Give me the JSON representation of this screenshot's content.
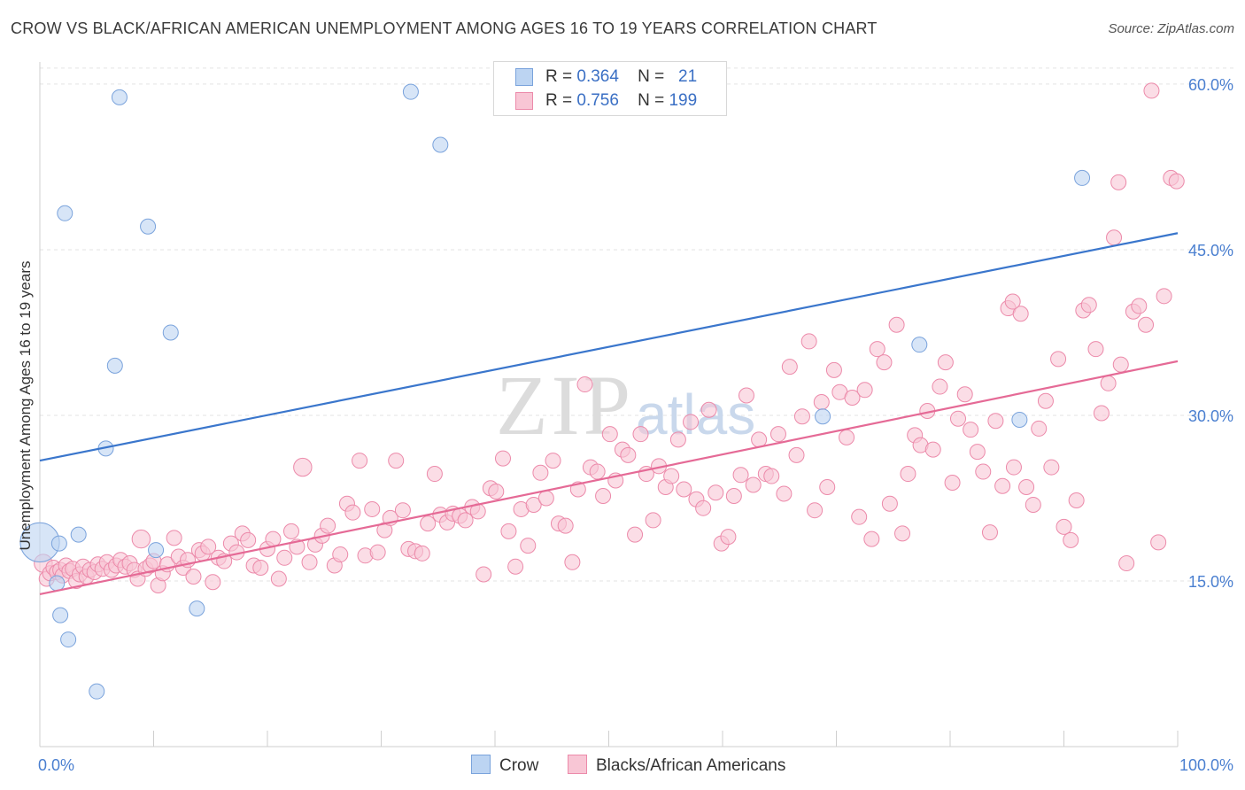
{
  "title": "CROW VS BLACK/AFRICAN AMERICAN UNEMPLOYMENT AMONG AGES 16 TO 19 YEARS CORRELATION CHART",
  "source": "Source: ZipAtlas.com",
  "watermark": {
    "zip": "ZIP",
    "atlas": "atlas"
  },
  "legend": [
    {
      "r_label": "R =",
      "r_value": "0.364",
      "n_label": "N =",
      "n_value": "21"
    },
    {
      "r_label": "R =",
      "r_value": "0.756",
      "n_label": "N =",
      "n_value": "199"
    }
  ],
  "colors": {
    "crow_fill": "#bcd4f2",
    "crow_stroke": "#7aa3dc",
    "crow_line": "#3a76cc",
    "black_fill": "#f8c6d5",
    "black_stroke": "#ec8aaa",
    "black_line": "#e56a96",
    "grid": "#e3e3e3",
    "axis_text": "#4a7fd0"
  },
  "chart_data": {
    "type": "scatter",
    "title": "CROW VS BLACK/AFRICAN AMERICAN UNEMPLOYMENT AMONG AGES 16 TO 19 YEARS CORRELATION CHART",
    "xlabel": "",
    "ylabel": "Unemployment Among Ages 16 to 19 years",
    "xlim": [
      0,
      100
    ],
    "ylim": [
      0,
      62
    ],
    "x_tick_labels": [
      {
        "value": 0,
        "label": "0.0%"
      },
      {
        "value": 100,
        "label": "100.0%"
      }
    ],
    "y_tick_labels": [
      {
        "value": 15,
        "label": "15.0%"
      },
      {
        "value": 30,
        "label": "30.0%"
      },
      {
        "value": 45,
        "label": "45.0%"
      },
      {
        "value": 60,
        "label": "60.0%"
      }
    ],
    "x_minor_ticks": [
      0,
      10,
      20,
      30,
      40,
      50,
      60,
      70,
      80,
      90,
      100
    ],
    "grid": true,
    "series": [
      {
        "name": "Crow",
        "trend": {
          "x0": 0,
          "y0": 25.9,
          "x1": 100,
          "y1": 46.5
        },
        "points": [
          [
            0.0,
            18.5,
            26
          ],
          [
            1.5,
            14.8,
            10
          ],
          [
            1.8,
            11.9,
            10
          ],
          [
            1.7,
            18.4,
            10
          ],
          [
            2.2,
            48.3,
            10
          ],
          [
            2.5,
            9.7,
            10
          ],
          [
            3.4,
            19.2,
            10
          ],
          [
            5.0,
            5.0,
            10
          ],
          [
            5.8,
            27.0,
            10
          ],
          [
            6.6,
            34.5,
            10
          ],
          [
            7.0,
            58.8,
            10
          ],
          [
            9.5,
            47.1,
            10
          ],
          [
            10.2,
            17.8,
            10
          ],
          [
            11.5,
            37.5,
            10
          ],
          [
            13.8,
            12.5,
            10
          ],
          [
            32.6,
            59.3,
            10
          ],
          [
            35.2,
            54.5,
            10
          ],
          [
            68.8,
            29.9,
            10
          ],
          [
            77.3,
            36.4,
            10
          ],
          [
            86.1,
            29.6,
            10
          ],
          [
            91.6,
            51.5,
            10
          ]
        ]
      },
      {
        "name": "Blacks/African Americans",
        "trend": {
          "x0": 0,
          "y0": 13.8,
          "x1": 100,
          "y1": 34.9
        },
        "points": [
          [
            0.3,
            16.6,
            12
          ],
          [
            0.6,
            15.2,
            10
          ],
          [
            0.9,
            15.7,
            10
          ],
          [
            1.2,
            16.2,
            10
          ],
          [
            1.5,
            15.8,
            10
          ],
          [
            1.8,
            16.0,
            10
          ],
          [
            2.0,
            15.5,
            10
          ],
          [
            2.3,
            16.4,
            10
          ],
          [
            2.6,
            15.9,
            10
          ],
          [
            2.9,
            16.1,
            10
          ],
          [
            3.2,
            15.0,
            10
          ],
          [
            3.5,
            15.6,
            10
          ],
          [
            3.8,
            16.3,
            10
          ],
          [
            4.1,
            15.4,
            10
          ],
          [
            4.4,
            16.0,
            10
          ],
          [
            4.8,
            15.8,
            10
          ],
          [
            5.1,
            16.5,
            10
          ],
          [
            5.5,
            16.1,
            10
          ],
          [
            5.9,
            16.7,
            10
          ],
          [
            6.3,
            16.0,
            10
          ],
          [
            6.7,
            16.4,
            10
          ],
          [
            7.1,
            16.9,
            10
          ],
          [
            7.5,
            16.3,
            10
          ],
          [
            7.9,
            16.6,
            10
          ],
          [
            8.3,
            16.0,
            10
          ],
          [
            8.6,
            15.2,
            10
          ],
          [
            8.9,
            18.8,
            12
          ],
          [
            9.3,
            16.1,
            10
          ],
          [
            9.7,
            16.4,
            10
          ],
          [
            10.0,
            16.8,
            10
          ],
          [
            10.4,
            14.6,
            10
          ],
          [
            10.8,
            15.7,
            10
          ],
          [
            11.2,
            16.5,
            10
          ],
          [
            11.8,
            18.9,
            10
          ],
          [
            12.2,
            17.2,
            10
          ],
          [
            12.6,
            16.2,
            10
          ],
          [
            13.0,
            16.9,
            10
          ],
          [
            13.5,
            15.4,
            10
          ],
          [
            14.0,
            17.8,
            10
          ],
          [
            14.3,
            17.5,
            10
          ],
          [
            14.8,
            18.1,
            10
          ],
          [
            15.2,
            14.9,
            10
          ],
          [
            15.7,
            17.1,
            10
          ],
          [
            16.2,
            16.8,
            10
          ],
          [
            16.8,
            18.4,
            10
          ],
          [
            17.3,
            17.6,
            10
          ],
          [
            17.8,
            19.3,
            10
          ],
          [
            18.3,
            18.7,
            10
          ],
          [
            18.8,
            16.4,
            10
          ],
          [
            19.4,
            16.2,
            10
          ],
          [
            20.0,
            17.9,
            10
          ],
          [
            20.5,
            18.8,
            10
          ],
          [
            21.0,
            15.2,
            10
          ],
          [
            21.5,
            17.1,
            10
          ],
          [
            22.1,
            19.5,
            10
          ],
          [
            22.6,
            18.1,
            10
          ],
          [
            23.1,
            25.3,
            12
          ],
          [
            23.7,
            16.7,
            10
          ],
          [
            24.2,
            18.3,
            10
          ],
          [
            24.8,
            19.1,
            10
          ],
          [
            25.3,
            20.0,
            10
          ],
          [
            25.9,
            16.4,
            10
          ],
          [
            26.4,
            17.4,
            10
          ],
          [
            27.0,
            22.0,
            10
          ],
          [
            27.5,
            21.2,
            10
          ],
          [
            28.1,
            25.9,
            10
          ],
          [
            28.6,
            17.3,
            10
          ],
          [
            29.2,
            21.5,
            10
          ],
          [
            29.7,
            17.6,
            10
          ],
          [
            30.3,
            19.6,
            10
          ],
          [
            30.8,
            20.7,
            10
          ],
          [
            31.3,
            25.9,
            10
          ],
          [
            31.9,
            21.4,
            10
          ],
          [
            32.4,
            17.9,
            10
          ],
          [
            33.0,
            17.7,
            10
          ],
          [
            33.6,
            17.5,
            10
          ],
          [
            34.1,
            20.2,
            10
          ],
          [
            34.7,
            24.7,
            10
          ],
          [
            35.2,
            21.0,
            10
          ],
          [
            35.8,
            20.3,
            10
          ],
          [
            36.3,
            21.1,
            10
          ],
          [
            36.9,
            20.9,
            10
          ],
          [
            37.4,
            20.5,
            10
          ],
          [
            38.0,
            21.7,
            10
          ],
          [
            38.5,
            21.3,
            10
          ],
          [
            39.0,
            15.6,
            10
          ],
          [
            39.6,
            23.4,
            10
          ],
          [
            40.1,
            23.1,
            10
          ],
          [
            40.7,
            26.1,
            10
          ],
          [
            41.2,
            19.5,
            10
          ],
          [
            41.8,
            16.3,
            10
          ],
          [
            42.3,
            21.5,
            10
          ],
          [
            42.9,
            18.2,
            10
          ],
          [
            43.4,
            21.9,
            10
          ],
          [
            44.0,
            24.8,
            10
          ],
          [
            44.5,
            22.5,
            10
          ],
          [
            45.1,
            25.9,
            10
          ],
          [
            45.6,
            20.2,
            10
          ],
          [
            46.2,
            20.0,
            10
          ],
          [
            46.8,
            16.7,
            10
          ],
          [
            47.3,
            23.3,
            10
          ],
          [
            47.9,
            32.8,
            10
          ],
          [
            48.4,
            25.3,
            10
          ],
          [
            49.0,
            24.9,
            10
          ],
          [
            49.5,
            22.7,
            10
          ],
          [
            50.1,
            28.3,
            10
          ],
          [
            50.6,
            24.1,
            10
          ],
          [
            51.2,
            26.9,
            10
          ],
          [
            51.7,
            26.4,
            10
          ],
          [
            52.3,
            19.2,
            10
          ],
          [
            52.8,
            28.3,
            10
          ],
          [
            53.3,
            24.7,
            10
          ],
          [
            53.9,
            20.5,
            10
          ],
          [
            54.4,
            25.4,
            10
          ],
          [
            55.0,
            23.5,
            10
          ],
          [
            55.5,
            24.5,
            10
          ],
          [
            56.1,
            27.8,
            10
          ],
          [
            56.6,
            23.3,
            10
          ],
          [
            57.2,
            29.4,
            10
          ],
          [
            57.7,
            22.4,
            10
          ],
          [
            58.3,
            21.6,
            10
          ],
          [
            58.8,
            30.5,
            10
          ],
          [
            59.4,
            23.0,
            10
          ],
          [
            59.9,
            18.4,
            10
          ],
          [
            60.5,
            19.0,
            10
          ],
          [
            61.0,
            22.7,
            10
          ],
          [
            61.6,
            24.6,
            10
          ],
          [
            62.1,
            31.8,
            10
          ],
          [
            62.7,
            23.7,
            10
          ],
          [
            63.2,
            27.8,
            10
          ],
          [
            63.8,
            24.7,
            10
          ],
          [
            64.3,
            24.5,
            10
          ],
          [
            64.9,
            28.3,
            10
          ],
          [
            65.4,
            22.9,
            10
          ],
          [
            65.9,
            34.4,
            10
          ],
          [
            66.5,
            26.4,
            10
          ],
          [
            67.0,
            29.9,
            10
          ],
          [
            67.6,
            36.7,
            10
          ],
          [
            68.1,
            21.4,
            10
          ],
          [
            68.7,
            31.2,
            10
          ],
          [
            69.2,
            23.5,
            10
          ],
          [
            69.8,
            34.1,
            10
          ],
          [
            70.3,
            32.1,
            10
          ],
          [
            70.9,
            28.0,
            10
          ],
          [
            71.4,
            31.6,
            10
          ],
          [
            72.0,
            20.8,
            10
          ],
          [
            72.5,
            32.3,
            10
          ],
          [
            73.1,
            18.8,
            10
          ],
          [
            73.6,
            36.0,
            10
          ],
          [
            74.2,
            34.8,
            10
          ],
          [
            74.7,
            22.0,
            10
          ],
          [
            75.3,
            38.2,
            10
          ],
          [
            75.8,
            19.3,
            10
          ],
          [
            76.3,
            24.7,
            10
          ],
          [
            76.9,
            28.2,
            10
          ],
          [
            77.4,
            27.3,
            10
          ],
          [
            78.0,
            30.4,
            10
          ],
          [
            78.5,
            26.9,
            10
          ],
          [
            79.1,
            32.6,
            10
          ],
          [
            79.6,
            34.8,
            10
          ],
          [
            80.2,
            23.9,
            10
          ],
          [
            80.7,
            29.7,
            10
          ],
          [
            81.3,
            31.9,
            10
          ],
          [
            81.8,
            28.7,
            10
          ],
          [
            82.4,
            26.7,
            10
          ],
          [
            82.9,
            24.9,
            10
          ],
          [
            83.5,
            19.4,
            10
          ],
          [
            84.0,
            29.5,
            10
          ],
          [
            84.6,
            23.6,
            10
          ],
          [
            85.1,
            39.7,
            10
          ],
          [
            85.6,
            25.3,
            10
          ],
          [
            86.2,
            39.2,
            10
          ],
          [
            86.7,
            23.5,
            10
          ],
          [
            87.3,
            21.9,
            10
          ],
          [
            87.8,
            28.8,
            10
          ],
          [
            88.4,
            31.3,
            10
          ],
          [
            88.9,
            25.3,
            10
          ],
          [
            89.5,
            35.1,
            10
          ],
          [
            90.0,
            19.9,
            10
          ],
          [
            90.6,
            18.7,
            10
          ],
          [
            91.1,
            22.3,
            10
          ],
          [
            91.7,
            39.5,
            10
          ],
          [
            92.2,
            40.0,
            10
          ],
          [
            92.8,
            36.0,
            10
          ],
          [
            93.3,
            30.2,
            10
          ],
          [
            93.9,
            32.9,
            10
          ],
          [
            94.4,
            46.1,
            10
          ],
          [
            95.0,
            34.6,
            10
          ],
          [
            95.5,
            16.6,
            10
          ],
          [
            96.1,
            39.4,
            10
          ],
          [
            96.6,
            39.9,
            10
          ],
          [
            97.2,
            38.2,
            10
          ],
          [
            97.7,
            59.4,
            10
          ],
          [
            98.3,
            18.5,
            10
          ],
          [
            98.8,
            40.8,
            10
          ],
          [
            99.4,
            51.5,
            10
          ],
          [
            99.9,
            51.2,
            10
          ],
          [
            94.8,
            51.1,
            10
          ],
          [
            85.5,
            40.3,
            10
          ]
        ]
      }
    ]
  },
  "bottom_legend": [
    {
      "label": "Crow"
    },
    {
      "label": "Blacks/African Americans"
    }
  ]
}
